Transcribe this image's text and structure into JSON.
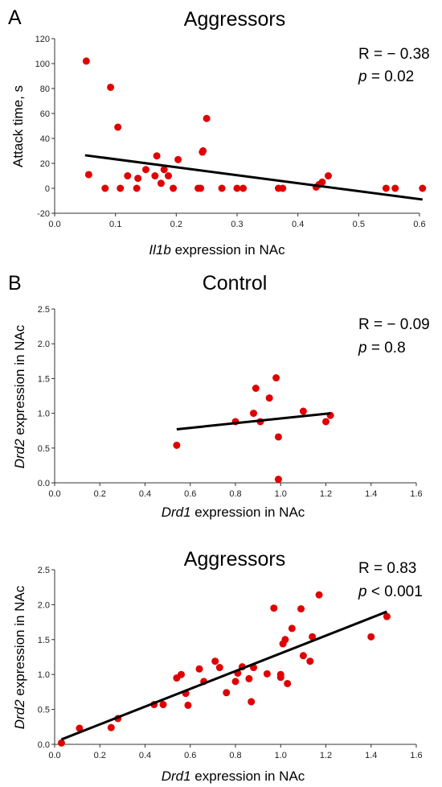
{
  "panels": [
    {
      "letter": "A",
      "title": "Aggressors",
      "stats": {
        "r_text": "R = − 0.38",
        "p_label": "p",
        "p_rest": " = 0.02"
      },
      "xlabel": {
        "italic": "Il1b",
        "rest": " expression in NAc"
      },
      "ylabel": {
        "italic": "",
        "rest": "Attack time, s"
      }
    },
    {
      "letter": "B",
      "title": "Control",
      "stats": {
        "r_text": "R = − 0.09",
        "p_label": "p",
        "p_rest": " = 0.8"
      },
      "xlabel": {
        "italic": "Drd1",
        "rest": " expression in NAc"
      },
      "ylabel": {
        "italic": "Drd2",
        "rest": " expression in NAc"
      }
    },
    {
      "letter": "",
      "title": "Aggressors",
      "stats": {
        "r_text": "R = 0.83",
        "p_label": "p",
        "p_rest": " < 0.001"
      },
      "xlabel": {
        "italic": "Drd1",
        "rest": " expression in NAc"
      },
      "ylabel": {
        "italic": "Drd2",
        "rest": " expression in NAc"
      }
    }
  ],
  "colors": {
    "point": "#e00000",
    "fit_line": "#000000",
    "axis": "#333333"
  },
  "chart_data": [
    {
      "type": "scatter",
      "title": "Aggressors",
      "xlabel": "Il1b expression in NAc",
      "ylabel": "Attack time, s",
      "xlim": [
        0.0,
        0.6
      ],
      "ylim": [
        -20,
        120
      ],
      "xticks": [
        "0.0",
        "0.1",
        "0.2",
        "0.3",
        "0.4",
        "0.5",
        "0.6"
      ],
      "yticks": [
        "-20",
        "0",
        "20",
        "40",
        "60",
        "80",
        "100",
        "120"
      ],
      "points": [
        [
          0.052,
          102
        ],
        [
          0.056,
          11
        ],
        [
          0.083,
          0
        ],
        [
          0.092,
          81
        ],
        [
          0.104,
          49
        ],
        [
          0.108,
          0
        ],
        [
          0.12,
          10
        ],
        [
          0.135,
          0
        ],
        [
          0.137,
          8
        ],
        [
          0.15,
          15
        ],
        [
          0.165,
          10
        ],
        [
          0.168,
          26
        ],
        [
          0.175,
          4
        ],
        [
          0.18,
          15
        ],
        [
          0.187,
          10
        ],
        [
          0.195,
          0
        ],
        [
          0.203,
          23
        ],
        [
          0.236,
          0
        ],
        [
          0.24,
          0
        ],
        [
          0.243,
          29
        ],
        [
          0.244,
          30
        ],
        [
          0.25,
          56
        ],
        [
          0.275,
          0
        ],
        [
          0.3,
          0
        ],
        [
          0.31,
          0
        ],
        [
          0.368,
          0
        ],
        [
          0.375,
          0
        ],
        [
          0.43,
          1
        ],
        [
          0.435,
          3
        ],
        [
          0.44,
          5
        ],
        [
          0.45,
          10
        ],
        [
          0.545,
          0
        ],
        [
          0.56,
          0
        ],
        [
          0.605,
          0
        ]
      ],
      "fit_line": {
        "x": [
          0.05,
          0.605
        ],
        "y": [
          26.5,
          -9
        ]
      },
      "grid": false
    },
    {
      "type": "scatter",
      "title": "Control",
      "xlabel": "Drd1 expression in NAc",
      "ylabel": "Drd2 expression in NAc",
      "xlim": [
        0.0,
        1.6
      ],
      "ylim": [
        0.0,
        2.5
      ],
      "xticks": [
        "0.0",
        "0.2",
        "0.4",
        "0.6",
        "0.8",
        "1.0",
        "1.2",
        "1.4",
        "1.6"
      ],
      "yticks": [
        "0.0",
        "0.5",
        "1.0",
        "1.5",
        "2.0",
        "2.5"
      ],
      "points": [
        [
          0.54,
          0.54
        ],
        [
          0.8,
          0.88
        ],
        [
          0.88,
          1.0
        ],
        [
          0.89,
          1.36
        ],
        [
          0.91,
          0.88
        ],
        [
          0.95,
          1.22
        ],
        [
          0.98,
          1.51
        ],
        [
          0.99,
          0.66
        ],
        [
          0.99,
          0.05
        ],
        [
          1.1,
          1.03
        ],
        [
          1.2,
          0.88
        ],
        [
          1.22,
          0.97
        ]
      ],
      "fit_line": {
        "x": [
          0.54,
          1.22
        ],
        "y": [
          0.77,
          1.0
        ]
      },
      "grid": false
    },
    {
      "type": "scatter",
      "title": "Aggressors",
      "xlabel": "Drd1 expression in NAc",
      "ylabel": "Drd2 expression in NAc",
      "xlim": [
        0.0,
        1.6
      ],
      "ylim": [
        0.0,
        2.5
      ],
      "xticks": [
        "0.0",
        "0.2",
        "0.4",
        "0.6",
        "0.8",
        "1.0",
        "1.2",
        "1.4",
        "1.6"
      ],
      "yticks": [
        "0.0",
        "0.5",
        "1.0",
        "1.5",
        "2.0",
        "2.5"
      ],
      "points": [
        [
          0.03,
          0.02
        ],
        [
          0.11,
          0.23
        ],
        [
          0.25,
          0.24
        ],
        [
          0.28,
          0.37
        ],
        [
          0.44,
          0.57
        ],
        [
          0.48,
          0.57
        ],
        [
          0.54,
          0.95
        ],
        [
          0.56,
          1.0
        ],
        [
          0.58,
          0.73
        ],
        [
          0.59,
          0.56
        ],
        [
          0.64,
          1.08
        ],
        [
          0.66,
          0.9
        ],
        [
          0.71,
          1.19
        ],
        [
          0.73,
          1.1
        ],
        [
          0.76,
          0.74
        ],
        [
          0.8,
          0.9
        ],
        [
          0.81,
          1.02
        ],
        [
          0.83,
          1.11
        ],
        [
          0.86,
          0.94
        ],
        [
          0.87,
          0.61
        ],
        [
          0.88,
          1.1
        ],
        [
          0.94,
          1.01
        ],
        [
          0.97,
          1.95
        ],
        [
          1.0,
          0.96
        ],
        [
          1.0,
          1.0
        ],
        [
          1.01,
          1.44
        ],
        [
          1.02,
          1.5
        ],
        [
          1.03,
          0.87
        ],
        [
          1.05,
          1.66
        ],
        [
          1.09,
          1.94
        ],
        [
          1.1,
          1.27
        ],
        [
          1.13,
          1.19
        ],
        [
          1.14,
          1.54
        ],
        [
          1.17,
          2.14
        ],
        [
          1.4,
          1.54
        ],
        [
          1.47,
          1.83
        ]
      ],
      "fit_line": {
        "x": [
          0.03,
          1.47
        ],
        "y": [
          0.07,
          1.9
        ]
      },
      "grid": false
    }
  ]
}
